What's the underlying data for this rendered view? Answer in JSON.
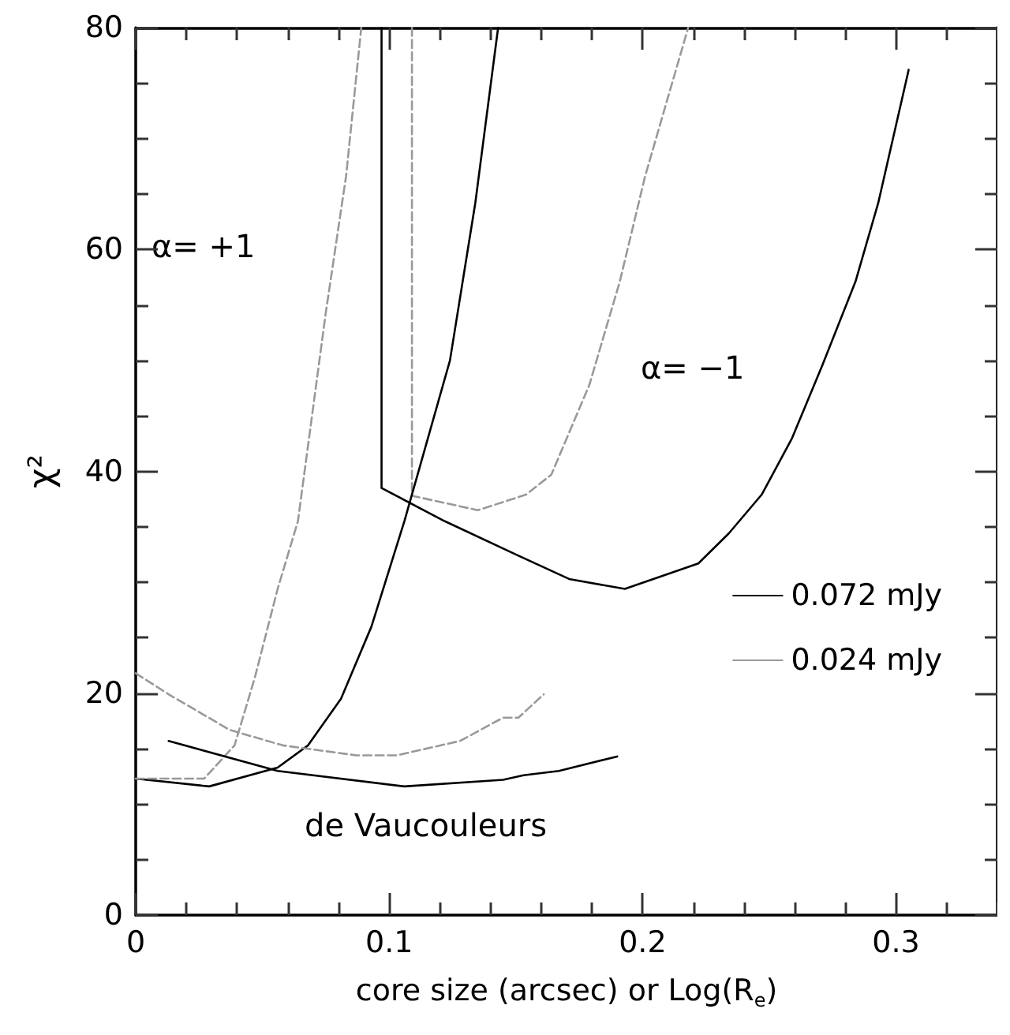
{
  "chart_data": {
    "type": "line",
    "xlabel": "core size (arcsec) or Log(R$_{e}$)",
    "ylabel": "χ²",
    "xlim": [
      0,
      0.34
    ],
    "ylim": [
      0,
      80
    ],
    "xticks": [
      0,
      {
        "value": 0.02,
        "label": null
      },
      {
        "value": 0.04,
        "label": null
      },
      {
        "value": 0.06,
        "label": null
      },
      {
        "value": 0.08,
        "label": null
      },
      0.1,
      {
        "value": 0.12,
        "label": null
      },
      {
        "value": 0.14,
        "label": null
      },
      {
        "value": 0.16,
        "label": null
      },
      {
        "value": 0.18,
        "label": null
      },
      0.2,
      {
        "value": 0.22,
        "label": null
      },
      {
        "value": 0.24,
        "label": null
      },
      {
        "value": 0.26,
        "label": null
      },
      {
        "value": 0.28,
        "label": null
      },
      0.3,
      {
        "value": 0.32,
        "label": null
      },
      {
        "value": 0.34,
        "label": null
      }
    ],
    "yticks": [
      0,
      {
        "value": 5,
        "label": null
      },
      {
        "value": 10,
        "label": null
      },
      {
        "value": 15,
        "label": null
      },
      20,
      {
        "value": 25,
        "label": null
      },
      {
        "value": 30,
        "label": null
      },
      {
        "value": 35,
        "label": null
      },
      40,
      {
        "value": 45,
        "label": null
      },
      {
        "value": 50,
        "label": null
      },
      {
        "value": 55,
        "label": null
      },
      60,
      {
        "value": 65,
        "label": null
      },
      {
        "value": 70,
        "label": null
      },
      {
        "value": 75,
        "label": null
      },
      80
    ],
    "grid": false,
    "legend": "right",
    "marker": "none",
    "series": [
      {
        "name": "0.072 mJy",
        "color": "#000000",
        "line_style": "solid",
        "x": [
          0.097,
          0.097,
          0.122,
          0.151,
          0.171,
          0.193,
          0.222,
          0.234,
          0.247,
          0.259,
          0.271,
          0.284,
          0.293,
          0.305
        ],
        "values": [
          80,
          38.5,
          35.5,
          32.4,
          30.3,
          29.4,
          31.7,
          34.4,
          37.9,
          43,
          49.6,
          57.1,
          64.2,
          76.2
        ]
      },
      {
        "name": "0.024 mJy",
        "color": "#999999",
        "line_style": "dashed",
        "x": [
          0.109,
          0.109,
          0.135,
          0.154,
          0.164,
          0.179,
          0.191,
          0.201,
          0.218
        ],
        "values": [
          80,
          37.8,
          36.5,
          37.9,
          39.7,
          47.8,
          57.1,
          66.6,
          80
        ]
      },
      {
        "color": "#000000",
        "line_style": "solid",
        "x": [
          0,
          0.029,
          0.056,
          0.068,
          0.081,
          0.093,
          0.106,
          0.124,
          0.134,
          0.143
        ],
        "values": [
          12.3,
          11.6,
          13.3,
          15.3,
          19.5,
          26,
          35.5,
          50,
          64.2,
          80
        ]
      },
      {
        "color": "#999999",
        "line_style": "dashed",
        "x": [
          0,
          0.027,
          0.039,
          0.047,
          0.056,
          0.064,
          0.075,
          0.083,
          0.089
        ],
        "values": [
          12.3,
          12.3,
          15.3,
          21.4,
          29.4,
          35.5,
          54.3,
          66.6,
          80
        ]
      },
      {
        "color": "#000000",
        "line_style": "solid",
        "x": [
          0.013,
          0.056,
          0.106,
          0.145,
          0.153,
          0.167,
          0.19
        ],
        "values": [
          15.7,
          13,
          11.6,
          12.2,
          12.6,
          13,
          14.3
        ]
      },
      {
        "color": "#999999",
        "line_style": "dashed",
        "x": [
          0,
          0.013,
          0.037,
          0.058,
          0.087,
          0.103,
          0.128,
          0.145,
          0.151,
          0.161
        ],
        "values": [
          21.8,
          19.9,
          16.7,
          15.3,
          14.4,
          14.4,
          15.7,
          17.8,
          17.8,
          19.9
        ]
      }
    ],
    "annotations": [
      "α= +1",
      "α= −1",
      "de Vaucouleurs"
    ]
  }
}
